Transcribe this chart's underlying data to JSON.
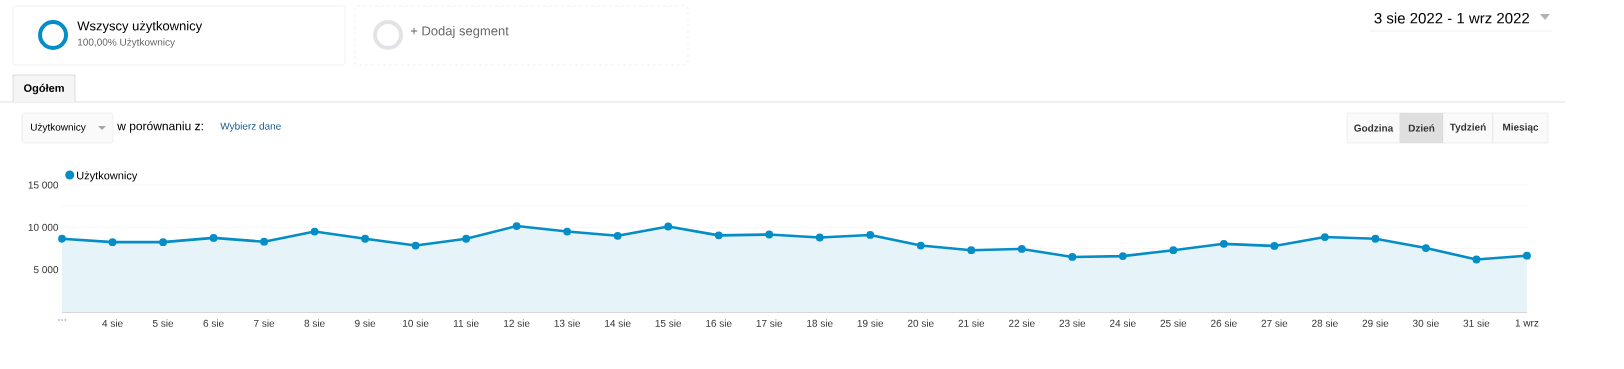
{
  "chart_data": {
    "type": "area",
    "categories": [
      "…",
      "4 sie",
      "5 sie",
      "6 sie",
      "7 sie",
      "8 sie",
      "9 sie",
      "10 sie",
      "11 sie",
      "12 sie",
      "13 sie",
      "14 sie",
      "15 sie",
      "16 sie",
      "17 sie",
      "18 sie",
      "19 sie",
      "20 sie",
      "21 sie",
      "22 sie",
      "23 sie",
      "24 sie",
      "25 sie",
      "26 sie",
      "27 sie",
      "28 sie",
      "29 sie",
      "30 sie",
      "31 sie",
      "1 wrz"
    ],
    "series": [
      {
        "name": "Użytkownicy",
        "color": "#058dc7",
        "values": [
          8650,
          8250,
          8250,
          8750,
          8300,
          9500,
          8650,
          7850,
          8650,
          10150,
          9500,
          9000,
          10100,
          9050,
          9150,
          8800,
          9100,
          7850,
          7300,
          7450,
          6500,
          6600,
          7300,
          8050,
          7800,
          8850,
          8650,
          7550,
          6200,
          6650
        ]
      }
    ],
    "ylim": [
      0,
      15000
    ],
    "yticks": [
      {
        "value": 2500,
        "label": null
      },
      {
        "value": 5000,
        "label": "5 000"
      },
      {
        "value": 7500,
        "label": null
      },
      {
        "value": 10000,
        "label": "10 000"
      },
      {
        "value": 12500,
        "label": null
      },
      {
        "value": 15000,
        "label": "15 000"
      }
    ],
    "grid": "y",
    "legend": "top left",
    "marker": "circle",
    "line_style": "solid",
    "annotations": [
      "Wszyscy użytkownicy",
      "100,00% Użytkownicy",
      "+ Dodaj segment",
      "3 sie 2022 - 1 wrz 2022",
      "Ogółem",
      "Użytkownicy",
      "w porównaniu z:",
      "Wybierz dane",
      "Godzina",
      "Dzień",
      "Tydzień",
      "Miesiąc"
    ]
  }
}
